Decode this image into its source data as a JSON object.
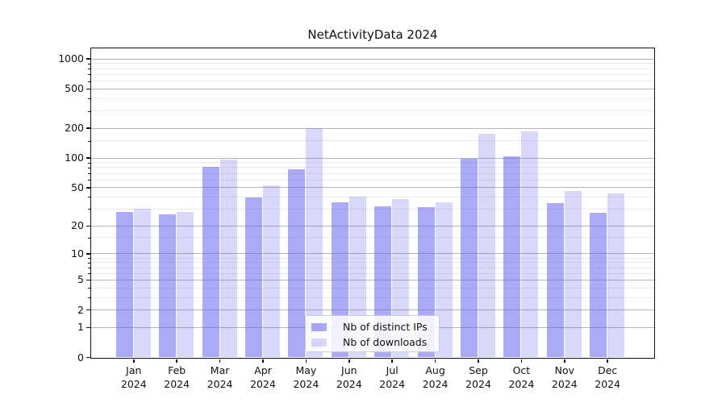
{
  "chart_data": {
    "type": "bar",
    "title": "NetActivityData 2024",
    "categories": [
      "Jan 2024",
      "Feb 2024",
      "Mar 2024",
      "Apr 2024",
      "May 2024",
      "Jun 2024",
      "Jul 2024",
      "Aug 2024",
      "Sep 2024",
      "Oct 2024",
      "Nov 2024",
      "Dec 2024"
    ],
    "series": [
      {
        "name": "Nb of distinct IPs",
        "color": "rgba(100,100,240,0.55)",
        "values": [
          28,
          26,
          81,
          39,
          76,
          35,
          32,
          31,
          98,
          104,
          34,
          27
        ]
      },
      {
        "name": "Nb of downloads",
        "color": "rgba(100,100,240,0.25)",
        "values": [
          30,
          28,
          95,
          52,
          200,
          40,
          38,
          35,
          175,
          185,
          46,
          43
        ]
      }
    ],
    "yscale": "log1p",
    "ylim": [
      0,
      1280
    ],
    "y_major_ticks": [
      0,
      1,
      2,
      5,
      10,
      20,
      50,
      100,
      200,
      500,
      1000
    ],
    "y_minor_ticks": [
      3,
      4,
      6,
      7,
      8,
      9,
      15,
      30,
      40,
      60,
      70,
      80,
      90,
      150,
      300,
      400,
      600,
      700,
      800,
      900
    ],
    "grid": true,
    "legend_position": "lower-center",
    "colors": {
      "major_grid": "#b3b3b3",
      "minor_grid": "#eaeaea",
      "spine": "#111111",
      "text": "#111111"
    }
  }
}
